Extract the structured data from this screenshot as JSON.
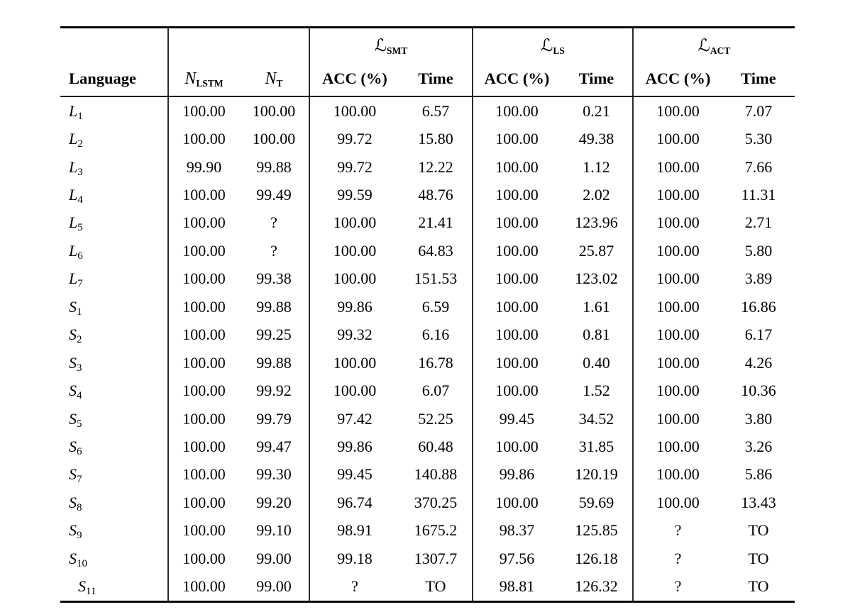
{
  "page": {
    "background_color": "#ffffff",
    "text_color": "#000000",
    "rule_color": "#0a0a0a"
  },
  "table": {
    "header": {
      "language_label": "Language",
      "model_columns": [
        {
          "symbol": "N",
          "subscript": "LSTM"
        },
        {
          "symbol": "N",
          "subscript": "T"
        }
      ],
      "loss_groups": [
        {
          "symbol": "ℒ",
          "subscript": "SMT"
        },
        {
          "symbol": "ℒ",
          "subscript": "LS"
        },
        {
          "symbol": "ℒ",
          "subscript": "ACT"
        }
      ],
      "metric_labels": {
        "acc": "ACC (%)",
        "time": "Time"
      }
    },
    "rows": [
      {
        "language": {
          "base": "L",
          "sub": "1"
        },
        "cells": [
          "100.00",
          "100.00",
          "100.00",
          "6.57",
          "100.00",
          "0.21",
          "100.00",
          "7.07"
        ]
      },
      {
        "language": {
          "base": "L",
          "sub": "2"
        },
        "cells": [
          "100.00",
          "100.00",
          "99.72",
          "15.80",
          "100.00",
          "49.38",
          "100.00",
          "5.30"
        ]
      },
      {
        "language": {
          "base": "L",
          "sub": "3"
        },
        "cells": [
          "99.90",
          "99.88",
          "99.72",
          "12.22",
          "100.00",
          "1.12",
          "100.00",
          "7.66"
        ]
      },
      {
        "language": {
          "base": "L",
          "sub": "4"
        },
        "cells": [
          "100.00",
          "99.49",
          "99.59",
          "48.76",
          "100.00",
          "2.02",
          "100.00",
          "11.31"
        ]
      },
      {
        "language": {
          "base": "L",
          "sub": "5"
        },
        "cells": [
          "100.00",
          "?",
          "100.00",
          "21.41",
          "100.00",
          "123.96",
          "100.00",
          "2.71"
        ]
      },
      {
        "language": {
          "base": "L",
          "sub": "6"
        },
        "cells": [
          "100.00",
          "?",
          "100.00",
          "64.83",
          "100.00",
          "25.87",
          "100.00",
          "5.80"
        ]
      },
      {
        "language": {
          "base": "L",
          "sub": "7"
        },
        "cells": [
          "100.00",
          "99.38",
          "100.00",
          "151.53",
          "100.00",
          "123.02",
          "100.00",
          "3.89"
        ]
      },
      {
        "language": {
          "base": "S",
          "sub": "1"
        },
        "cells": [
          "100.00",
          "99.88",
          "99.86",
          "6.59",
          "100.00",
          "1.61",
          "100.00",
          "16.86"
        ]
      },
      {
        "language": {
          "base": "S",
          "sub": "2"
        },
        "cells": [
          "100.00",
          "99.25",
          "99.32",
          "6.16",
          "100.00",
          "0.81",
          "100.00",
          "6.17"
        ]
      },
      {
        "language": {
          "base": "S",
          "sub": "3"
        },
        "cells": [
          "100.00",
          "99.88",
          "100.00",
          "16.78",
          "100.00",
          "0.40",
          "100.00",
          "4.26"
        ]
      },
      {
        "language": {
          "base": "S",
          "sub": "4"
        },
        "cells": [
          "100.00",
          "99.92",
          "100.00",
          "6.07",
          "100.00",
          "1.52",
          "100.00",
          "10.36"
        ]
      },
      {
        "language": {
          "base": "S",
          "sub": "5"
        },
        "cells": [
          "100.00",
          "99.79",
          "97.42",
          "52.25",
          "99.45",
          "34.52",
          "100.00",
          "3.80"
        ]
      },
      {
        "language": {
          "base": "S",
          "sub": "6"
        },
        "cells": [
          "100.00",
          "99.47",
          "99.86",
          "60.48",
          "100.00",
          "31.85",
          "100.00",
          "3.26"
        ]
      },
      {
        "language": {
          "base": "S",
          "sub": "7"
        },
        "cells": [
          "100.00",
          "99.30",
          "99.45",
          "140.88",
          "99.86",
          "120.19",
          "100.00",
          "5.86"
        ]
      },
      {
        "language": {
          "base": "S",
          "sub": "8"
        },
        "cells": [
          "100.00",
          "99.20",
          "96.74",
          "370.25",
          "100.00",
          "59.69",
          "100.00",
          "13.43"
        ]
      },
      {
        "language": {
          "base": "S",
          "sub": "9"
        },
        "cells": [
          "100.00",
          "99.10",
          "98.91",
          "1675.2",
          "98.37",
          "125.85",
          "?",
          "TO"
        ]
      },
      {
        "language": {
          "base": "S",
          "sub": "10"
        },
        "cells": [
          "100.00",
          "99.00",
          "99.18",
          "1307.7",
          "97.56",
          "126.18",
          "?",
          "TO"
        ]
      },
      {
        "language": {
          "base": "S",
          "sub": "11"
        },
        "cells": [
          "100.00",
          "99.00",
          "?",
          "TO",
          "98.81",
          "126.32",
          "?",
          "TO"
        ]
      }
    ]
  }
}
